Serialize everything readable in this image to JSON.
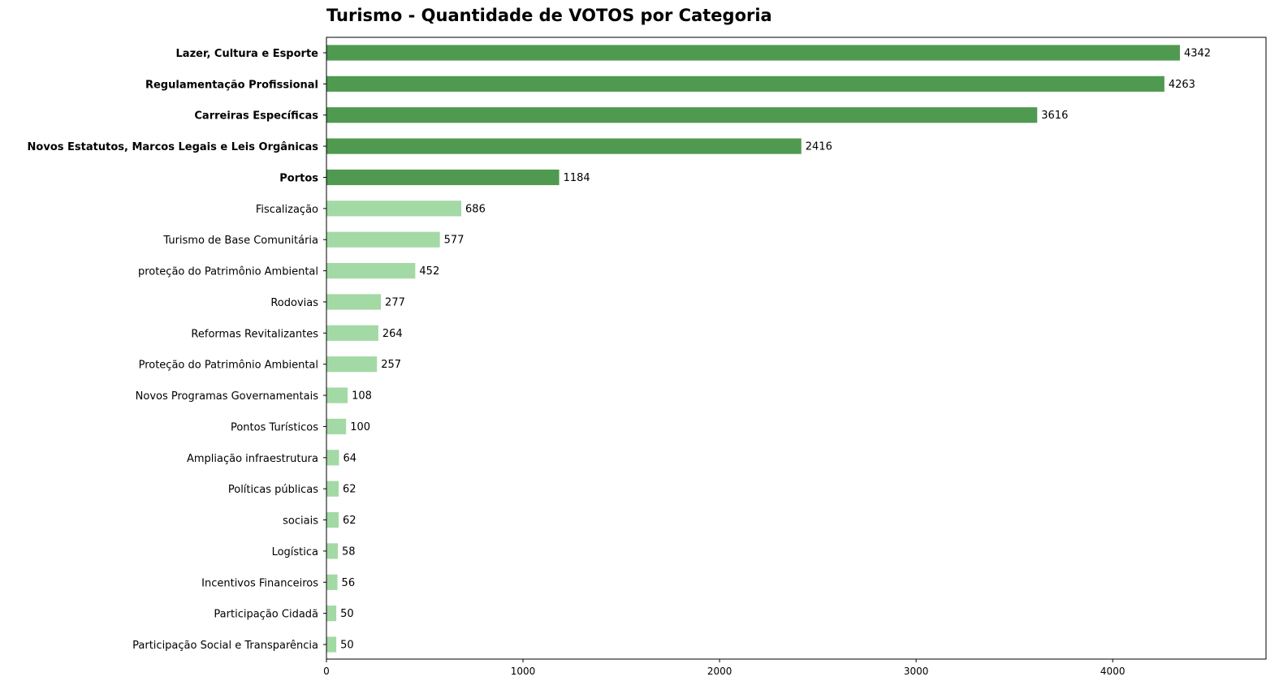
{
  "chart_data": {
    "type": "bar",
    "orientation": "horizontal",
    "title": "Turismo - Quantidade de VOTOS por Categoria",
    "xlabel": "",
    "ylabel": "",
    "xlim": [
      0,
      4780
    ],
    "xticks": [
      0,
      1000,
      2000,
      3000,
      4000
    ],
    "grid": false,
    "legend": "none",
    "colors": {
      "highlight": "#4f9a50",
      "normal": "#a3d9a5"
    },
    "categories": [
      "Lazer, Cultura e Esporte",
      "Regulamentação Profissional",
      "Carreiras Específicas",
      "Novos Estatutos, Marcos Legais e Leis Orgânicas",
      "Portos",
      "Fiscalização",
      "Turismo de Base Comunitária",
      "proteção do Patrimônio Ambiental",
      "Rodovias",
      "Reformas Revitalizantes",
      "Proteção do Patrimônio Ambiental",
      "Novos Programas Governamentais",
      "Pontos Turísticos",
      "Ampliação infraestrutura",
      "Políticas públicas",
      "sociais",
      "Logística",
      "Incentivos Financeiros",
      "Participação Cidadã",
      "Participação Social e Transparência"
    ],
    "values": [
      4342,
      4263,
      3616,
      2416,
      1184,
      686,
      577,
      452,
      277,
      264,
      257,
      108,
      100,
      64,
      62,
      62,
      58,
      56,
      50,
      50
    ],
    "highlighted": [
      true,
      true,
      true,
      true,
      true,
      false,
      false,
      false,
      false,
      false,
      false,
      false,
      false,
      false,
      false,
      false,
      false,
      false,
      false,
      false
    ]
  }
}
